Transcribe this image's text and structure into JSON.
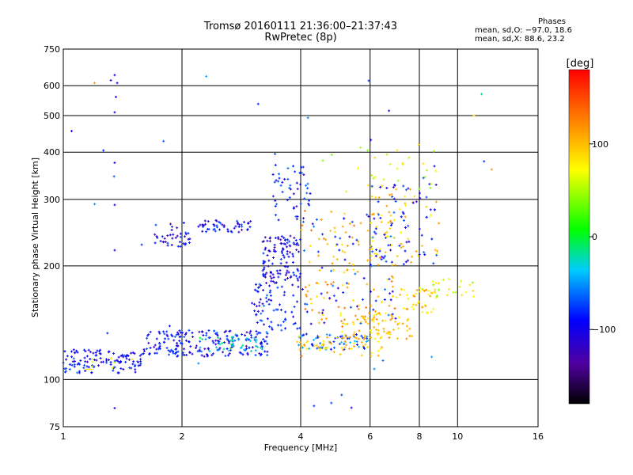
{
  "header": {
    "title_line1": "Tromsø 20160111 21:36:00–21:37:43",
    "title_line2": "RwPretec (8p)"
  },
  "phase_info": {
    "title": "Phases",
    "line_o": "mean, sd,O: −97.0, 18.6",
    "line_x": "mean, sd,X:  88.6, 23.2"
  },
  "colorbar": {
    "label": "[deg]",
    "ticks": [
      "100",
      "0",
      "−100"
    ],
    "tick_values": [
      100,
      0,
      -100
    ],
    "range": [
      -180,
      180
    ]
  },
  "chart_data": {
    "type": "scatter",
    "xlabel": "Frequency [MHz]",
    "ylabel": "Stationary phase Virtual Height [km]",
    "x_scale": "log",
    "y_scale": "log",
    "xlim": [
      1,
      16
    ],
    "ylim": [
      75,
      750
    ],
    "x_ticks": [
      1,
      2,
      4,
      6,
      8,
      10,
      16
    ],
    "x_tick_labels": [
      "1",
      "2",
      "4",
      "6",
      "8",
      "10",
      "16"
    ],
    "y_ticks": [
      75,
      100,
      200,
      300,
      400,
      500,
      600,
      750
    ],
    "y_tick_labels": [
      "75",
      "100",
      "200",
      "300",
      "400",
      "500",
      "600",
      "750"
    ],
    "x_grid": [
      2,
      4,
      6,
      8,
      10
    ],
    "y_grid": [
      100,
      200,
      300,
      400,
      500,
      600
    ],
    "grid": true,
    "clusters": [
      {
        "f": [
          1.0,
          1.6
        ],
        "h": [
          104,
          120
        ],
        "phase": -100,
        "n": 120
      },
      {
        "f": [
          1.6,
          3.3
        ],
        "h": [
          115,
          135
        ],
        "phase": -100,
        "n": 200
      },
      {
        "f": [
          1.1,
          1.5
        ],
        "h": [
          106,
          114
        ],
        "phase": 70,
        "n": 10
      },
      {
        "f": [
          2.2,
          3.2
        ],
        "h": [
          118,
          130
        ],
        "phase": -35,
        "n": 40
      },
      {
        "f": [
          3.0,
          4.0
        ],
        "h": [
          135,
          180
        ],
        "phase": -95,
        "n": 70
      },
      {
        "f": [
          3.2,
          4.0
        ],
        "h": [
          180,
          240
        ],
        "phase": -110,
        "n": 120
      },
      {
        "f": [
          1.7,
          2.1
        ],
        "h": [
          225,
          260
        ],
        "phase": -105,
        "n": 40
      },
      {
        "f": [
          2.2,
          3.0
        ],
        "h": [
          245,
          265
        ],
        "phase": -100,
        "n": 50
      },
      {
        "f": [
          3.4,
          4.3
        ],
        "h": [
          260,
          370
        ],
        "phase": -95,
        "n": 50
      },
      {
        "f": [
          3.9,
          6.0
        ],
        "h": [
          120,
          132
        ],
        "phase": -70,
        "n": 60
      },
      {
        "f": [
          3.9,
          6.5
        ],
        "h": [
          115,
          130
        ],
        "phase": 95,
        "n": 60
      },
      {
        "f": [
          5.0,
          7.8
        ],
        "h": [
          128,
          150
        ],
        "phase": 100,
        "n": 80
      },
      {
        "f": [
          7.0,
          9.0
        ],
        "h": [
          150,
          175
        ],
        "phase": 95,
        "n": 40
      },
      {
        "f": [
          8.0,
          11.0
        ],
        "h": [
          165,
          185
        ],
        "phase": 60,
        "n": 25
      },
      {
        "f": [
          4.0,
          7.0
        ],
        "h": [
          140,
          280
        ],
        "phase": 110,
        "n": 120
      },
      {
        "f": [
          4.0,
          7.0
        ],
        "h": [
          140,
          280
        ],
        "phase": -90,
        "n": 70
      },
      {
        "f": [
          6.0,
          9.0
        ],
        "h": [
          200,
          330
        ],
        "phase": 90,
        "n": 50
      },
      {
        "f": [
          6.0,
          9.0
        ],
        "h": [
          200,
          330
        ],
        "phase": -100,
        "n": 60
      },
      {
        "f": [
          4.5,
          9.0
        ],
        "h": [
          300,
          420
        ],
        "phase": 60,
        "n": 30
      },
      {
        "f": [
          1.0,
          12.0
        ],
        "h": [
          80,
          650
        ],
        "phase": -80,
        "n": 30
      }
    ],
    "points": [
      {
        "f": 1.35,
        "h": 640,
        "phase": -110
      },
      {
        "f": 1.32,
        "h": 620,
        "phase": -110
      },
      {
        "f": 1.37,
        "h": 610,
        "phase": -110
      },
      {
        "f": 1.36,
        "h": 560,
        "phase": -110
      },
      {
        "f": 1.35,
        "h": 510,
        "phase": -110
      },
      {
        "f": 1.05,
        "h": 455,
        "phase": -110
      },
      {
        "f": 1.35,
        "h": 375,
        "phase": -110
      },
      {
        "f": 1.35,
        "h": 290,
        "phase": -110
      },
      {
        "f": 1.35,
        "h": 220,
        "phase": -110
      },
      {
        "f": 1.35,
        "h": 84,
        "phase": -110
      },
      {
        "f": 1.2,
        "h": 610,
        "phase": 120
      },
      {
        "f": 6.7,
        "h": 515,
        "phase": -110
      },
      {
        "f": 11.5,
        "h": 570,
        "phase": -20
      },
      {
        "f": 11.0,
        "h": 500,
        "phase": 90
      },
      {
        "f": 12.2,
        "h": 360,
        "phase": 120
      }
    ]
  }
}
